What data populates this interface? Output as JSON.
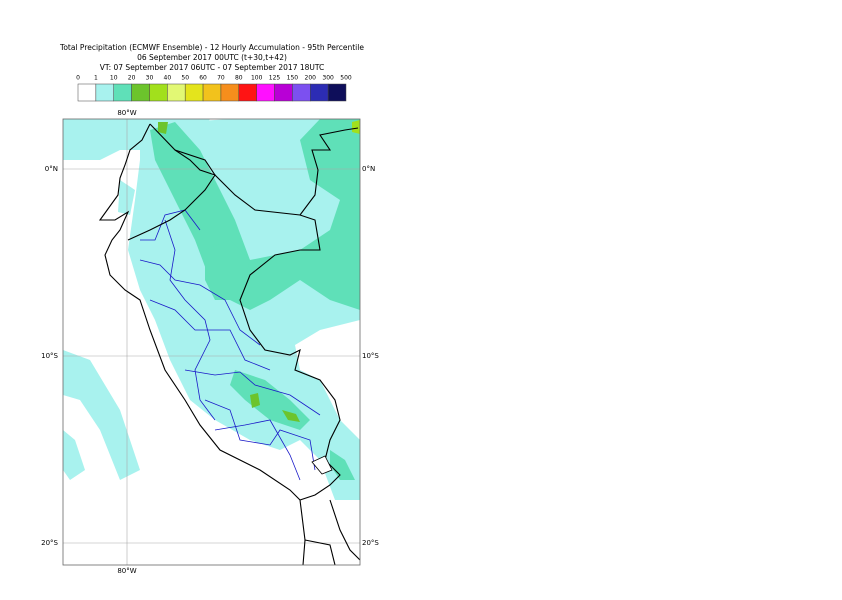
{
  "title": {
    "lines": [
      "Total Precipitation (ECMWF Ensemble) - 12 Hourly Accumulation - 95th Percentile",
      "06 September 2017 00UTC (t+30,t+42)",
      "VT: 07 September 2017 06UTC - 07 September 2017 18UTC"
    ]
  },
  "legend": {
    "labels": [
      "0",
      "1",
      "10",
      "20",
      "30",
      "40",
      "50",
      "60",
      "70",
      "80",
      "100",
      "125",
      "150",
      "200",
      "300",
      "500"
    ],
    "colors": [
      "#ffffff",
      "#a8f2ee",
      "#5fe0b8",
      "#6cc42c",
      "#a2e01c",
      "#e2f874",
      "#e4e41c",
      "#f2c21c",
      "#f68e1c",
      "#ff1414",
      "#ff10ff",
      "#b800d6",
      "#7c50f0",
      "#2c2cb4",
      "#0e0e5a"
    ]
  },
  "map": {
    "lon_labels": [
      "80°W"
    ],
    "lat_labels": [
      "0°N",
      "10°S",
      "20°S"
    ]
  }
}
